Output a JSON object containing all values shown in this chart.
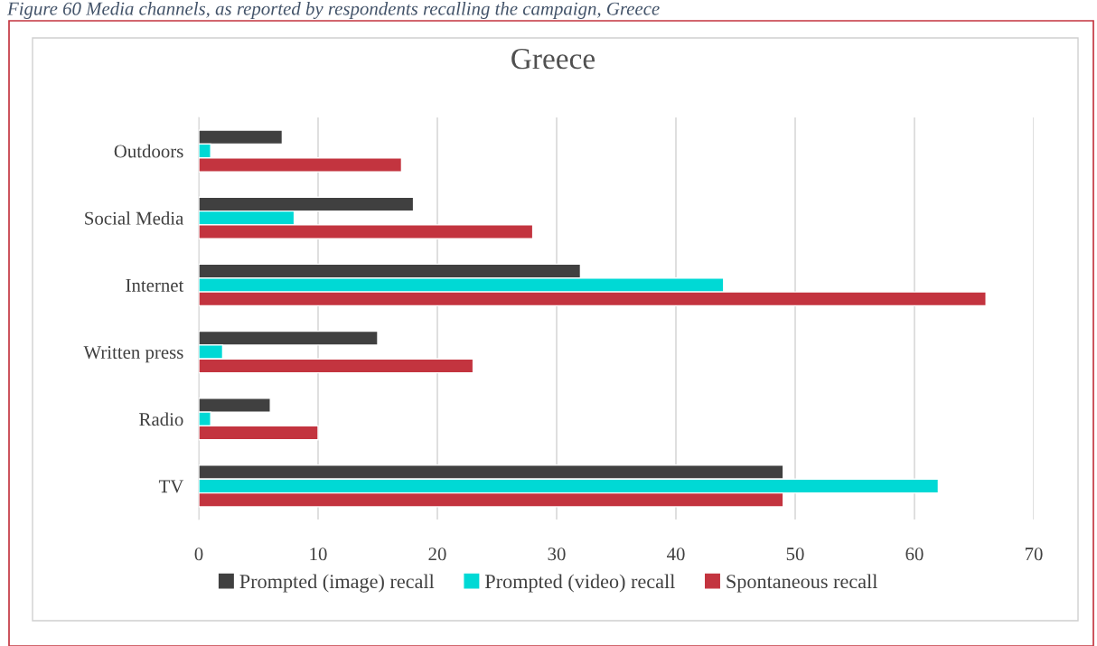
{
  "chart_data": {
    "type": "bar",
    "orientation": "horizontal",
    "title": "Greece",
    "annotations": [
      "Figure 60 Media channels, as reported by respondents recalling the campaign, Greece"
    ],
    "categories": [
      "Outdoors",
      "Social Media",
      "Internet",
      "Written press",
      "Radio",
      "TV"
    ],
    "series": [
      {
        "name": "Prompted (image) recall",
        "color": "#404040",
        "values": [
          7,
          18,
          32,
          15,
          6,
          49
        ]
      },
      {
        "name": "Prompted (video) recall",
        "color": "#00d9d5",
        "values": [
          1,
          8,
          44,
          2,
          1,
          62
        ]
      },
      {
        "name": "Spontaneous recall",
        "color": "#c3343f",
        "values": [
          17,
          28,
          66,
          23,
          10,
          49
        ]
      }
    ],
    "xlim": [
      0,
      70
    ],
    "xticks": [
      0,
      10,
      20,
      30,
      40,
      50,
      60,
      70
    ],
    "grid": "x",
    "legend": "bottom"
  }
}
